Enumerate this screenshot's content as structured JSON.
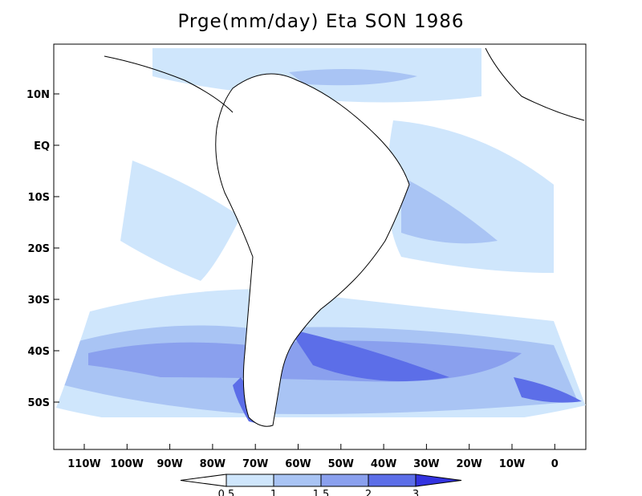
{
  "title": "Prge(mm/day) Eta SON 1986",
  "y_tick_labels": [
    "10N",
    "EQ",
    "10S",
    "20S",
    "30S",
    "40S",
    "50S"
  ],
  "x_tick_labels": [
    "110W",
    "100W",
    "90W",
    "80W",
    "70W",
    "60W",
    "50W",
    "40W",
    "30W",
    "20W",
    "10W",
    "0"
  ],
  "colorbar": {
    "labels": [
      "0.5",
      "1",
      "1.5",
      "2",
      "3"
    ],
    "colors": [
      "#ffffff",
      "#cfe6fc",
      "#a9c4f4",
      "#8aa0ee",
      "#5c6ee8",
      "#3333e0"
    ]
  },
  "colors": {
    "ocean_low": "#ffffff",
    "light": "#cfe6fc",
    "medium": "#a9c4f4",
    "strong": "#8aa0ee",
    "heavy": "#5c6ee8",
    "extreme": "#3333e0",
    "coastline": "#000000"
  }
}
